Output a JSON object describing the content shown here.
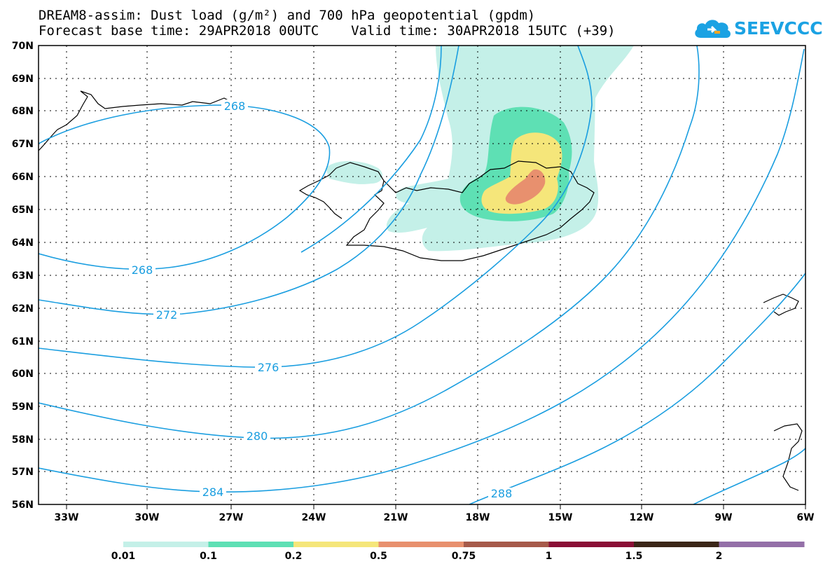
{
  "title": {
    "line1": "DREAM8-assim: Dust load (g/m²) and 700 hPa geopotential (gpdm)",
    "line2": "Forecast base time: 29APR2018 00UTC    Valid time: 30APR2018 15UTC (+39)"
  },
  "logo": {
    "text": "SEEVCCC",
    "icon": "cloud-icon",
    "color": "#1ba2e3"
  },
  "map": {
    "lat_labels": [
      "70N",
      "69N",
      "68N",
      "67N",
      "66N",
      "65N",
      "64N",
      "63N",
      "62N",
      "61N",
      "60N",
      "59N",
      "58N",
      "57N",
      "56N"
    ],
    "lon_labels": [
      "33W",
      "30W",
      "27W",
      "24W",
      "21W",
      "18W",
      "15W",
      "12W",
      "9W",
      "6W"
    ],
    "contour_labels": [
      "268",
      "268",
      "272",
      "276",
      "280",
      "284",
      "288"
    ],
    "contour_color": "#1a9ee0"
  },
  "legend": {
    "labels": [
      "0.01",
      "0.1",
      "0.2",
      "0.5",
      "0.75",
      "1",
      "1.5",
      "2"
    ],
    "colors": [
      "#c4f0e8",
      "#5ee0b4",
      "#f5e67a",
      "#e8906e",
      "#a65a4a",
      "#8a0f36",
      "#3b2618",
      "#9470a8"
    ]
  }
}
